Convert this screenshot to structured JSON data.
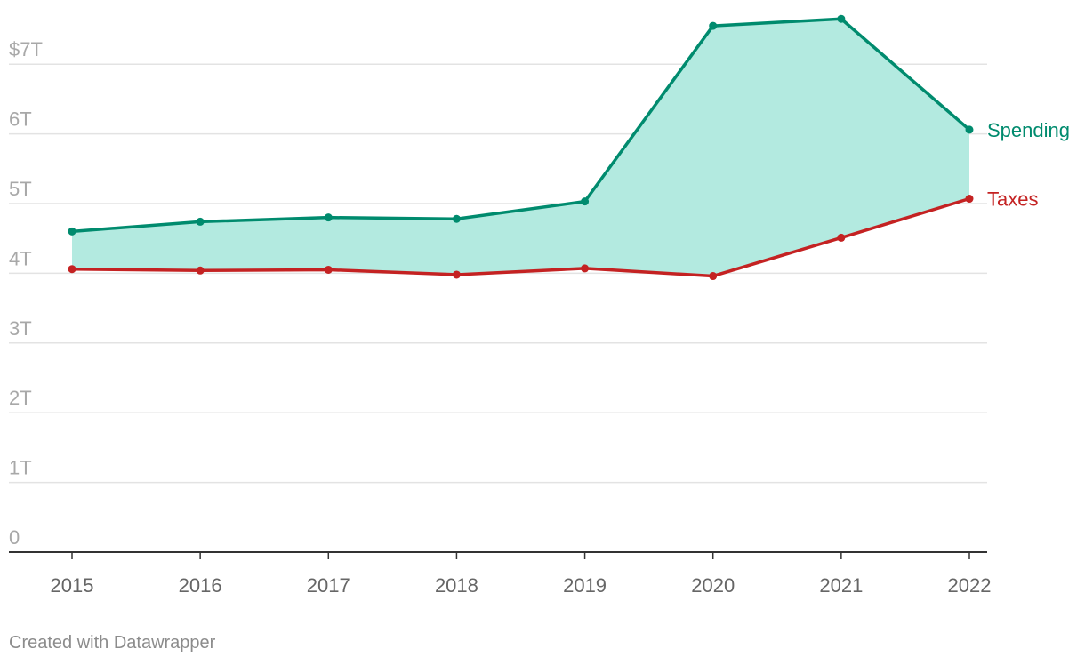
{
  "chart_data": {
    "type": "area",
    "x": [
      "2015",
      "2016",
      "2017",
      "2018",
      "2019",
      "2020",
      "2021",
      "2022"
    ],
    "series": [
      {
        "name": "Spending",
        "values": [
          4.6,
          4.74,
          4.8,
          4.78,
          5.03,
          7.55,
          7.65,
          6.06
        ],
        "color": "#008b6e"
      },
      {
        "name": "Taxes",
        "values": [
          4.06,
          4.04,
          4.05,
          3.98,
          4.07,
          3.96,
          4.51,
          5.07
        ],
        "color": "#c42222"
      }
    ],
    "fill_between": {
      "from": "Taxes",
      "to": "Spending",
      "color": "#b3eae0"
    },
    "y_ticks": [
      {
        "value": 0,
        "label": "0"
      },
      {
        "value": 1,
        "label": "1T"
      },
      {
        "value": 2,
        "label": "2T"
      },
      {
        "value": 3,
        "label": "3T"
      },
      {
        "value": 4,
        "label": "4T"
      },
      {
        "value": 5,
        "label": "5T"
      },
      {
        "value": 6,
        "label": "6T"
      },
      {
        "value": 7,
        "label": "$7T"
      }
    ],
    "ylim": [
      0,
      7.8
    ],
    "grid": true,
    "legend": "inline-right",
    "title": "",
    "xlabel": "",
    "ylabel": ""
  },
  "footer": {
    "credit": "Created with Datawrapper"
  }
}
